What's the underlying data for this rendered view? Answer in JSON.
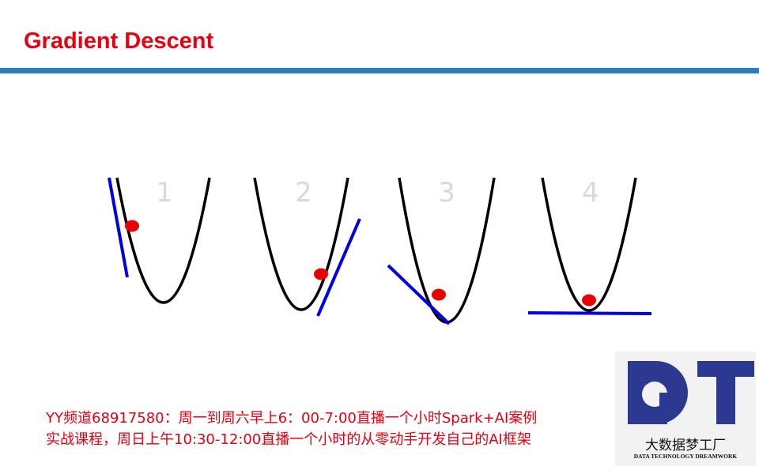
{
  "header": {
    "title": "Gradient Descent"
  },
  "panels": [
    {
      "label": "1"
    },
    {
      "label": "2"
    },
    {
      "label": "3"
    },
    {
      "label": "4"
    }
  ],
  "footer": {
    "lines": [
      "YY频道68917580：周一到周六早上6：00-7:00直播一个小时Spark+AI案例",
      "实战课程，周日上午10:30-12:00直播一个小时的从零动手开发自己的AI框架"
    ]
  },
  "logo": {
    "name": "大数据梦工厂",
    "tagline": "DATA TECHNOLOGY DREAMWORK"
  }
}
